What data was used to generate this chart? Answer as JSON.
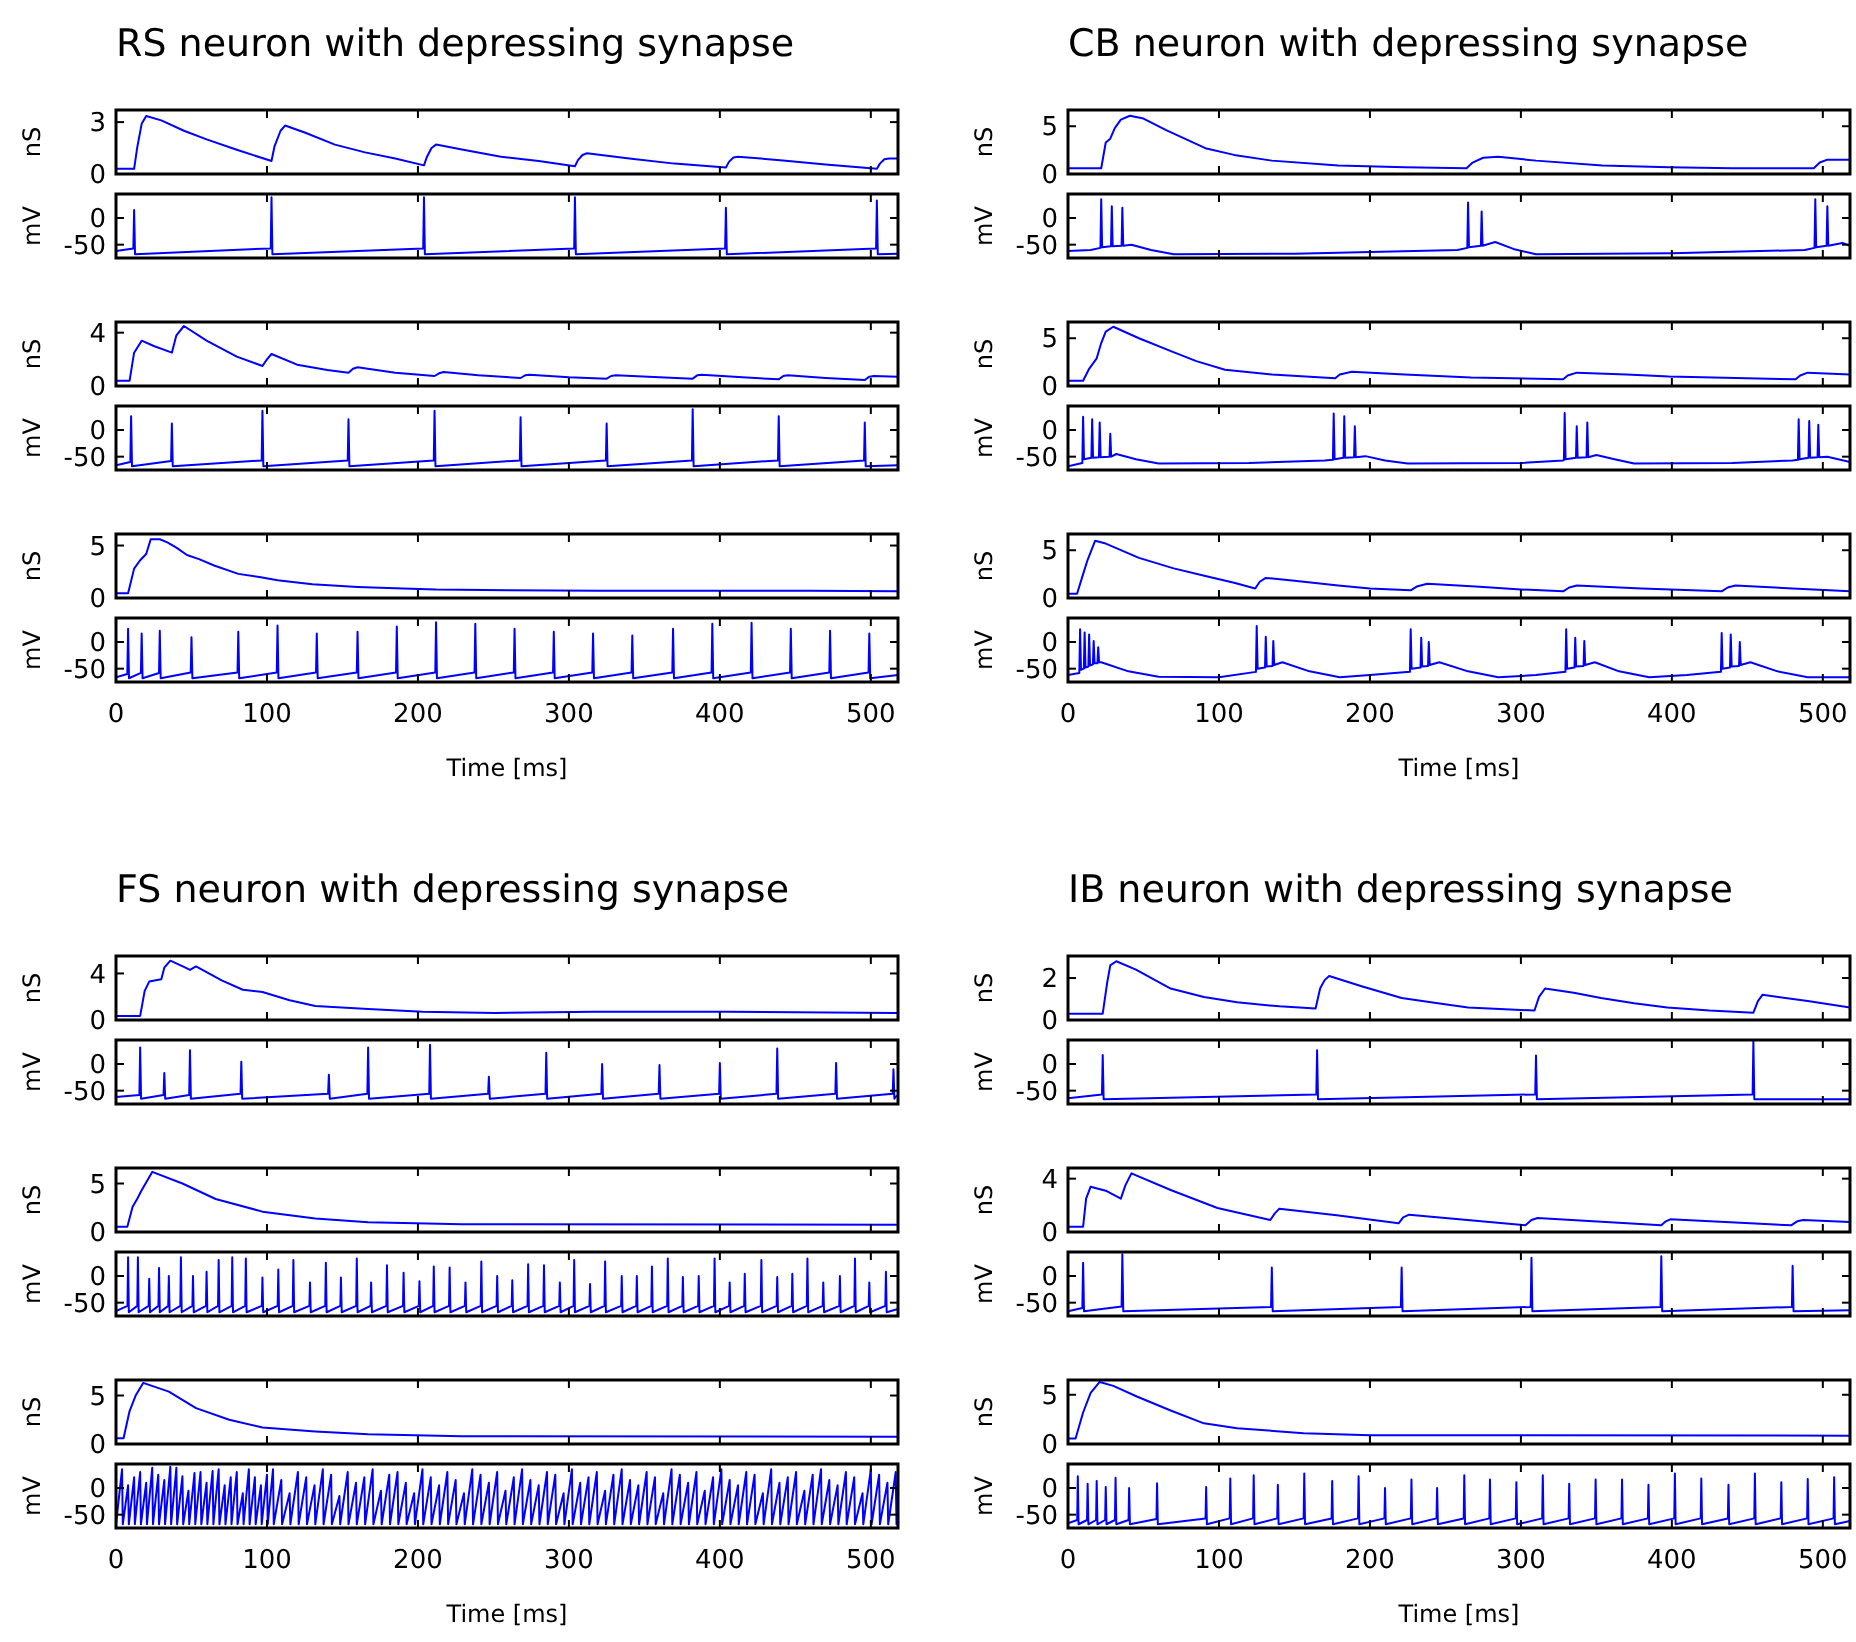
{
  "chart_data": [
    {
      "type": "line",
      "title": "RS neuron with depressing synapse",
      "ylabel": "nS",
      "tick_labels": "y",
      "color": "#0000ff",
      "xlim": [
        0,
        518
      ],
      "xticks": [
        0,
        100,
        200,
        300,
        400,
        500
      ],
      "ylim": [
        0,
        3.7
      ],
      "yticks": [
        0,
        3
      ],
      "x": [
        0,
        12,
        14,
        17,
        20,
        30,
        45,
        60,
        80,
        103,
        105,
        109,
        112,
        125,
        145,
        165,
        185,
        204,
        206,
        209,
        212,
        230,
        255,
        280,
        304,
        306,
        309,
        312,
        340,
        370,
        404,
        406,
        409,
        412,
        440,
        470,
        504,
        506,
        509,
        512,
        518
      ],
      "values": [
        0.3,
        0.3,
        1.5,
        2.9,
        3.35,
        3.1,
        2.5,
        2.0,
        1.4,
        0.75,
        1.6,
        2.5,
        2.8,
        2.4,
        1.7,
        1.25,
        0.9,
        0.5,
        1.0,
        1.5,
        1.7,
        1.4,
        1.0,
        0.75,
        0.45,
        0.8,
        1.1,
        1.2,
        0.9,
        0.6,
        0.37,
        0.7,
        0.95,
        1.0,
        0.8,
        0.55,
        0.3,
        0.6,
        0.85,
        0.9,
        0.9
      ]
    },
    {
      "type": "line",
      "ylabel": "mV",
      "tick_labels": "y",
      "color": "#0000ff",
      "xlim": [
        0,
        518
      ],
      "xticks": [
        0,
        100,
        200,
        300,
        400,
        500
      ],
      "ylim": [
        -75,
        45
      ],
      "yticks": [
        -50,
        0
      ],
      "x": [
        0,
        11.5,
        12,
        12.6,
        102.5,
        103,
        103.6,
        203.5,
        204,
        204.6,
        303.5,
        304,
        304.6,
        403.5,
        404,
        404.6,
        503.5,
        504,
        504.6,
        518
      ],
      "values": [
        -62,
        -57,
        15,
        -68,
        -57,
        39,
        -68,
        -57,
        39,
        -68,
        -57,
        39,
        -68,
        -57,
        19,
        -68,
        -57,
        33,
        -68,
        -67
      ]
    },
    {
      "type": "line",
      "ylabel": "nS",
      "tick_labels": "y",
      "color": "#0000ff",
      "xlim": [
        0,
        518
      ],
      "xticks": [
        0,
        100,
        200,
        300,
        400,
        500
      ],
      "ylim": [
        0,
        4.8
      ],
      "yticks": [
        0,
        4
      ],
      "x": [
        0,
        9,
        12,
        17,
        25,
        37,
        40,
        45,
        60,
        80,
        97,
        100,
        103,
        120,
        140,
        154,
        157,
        160,
        185,
        211,
        214,
        217,
        240,
        268,
        271,
        274,
        300,
        325,
        328,
        331,
        360,
        382,
        385,
        388,
        415,
        439,
        442,
        445,
        470,
        496,
        499,
        502,
        518
      ],
      "values": [
        0.4,
        0.4,
        2.5,
        3.4,
        3.0,
        2.5,
        3.8,
        4.5,
        3.4,
        2.2,
        1.5,
        2.0,
        2.4,
        1.6,
        1.2,
        1.0,
        1.3,
        1.4,
        1.0,
        0.75,
        0.95,
        1.05,
        0.8,
        0.6,
        0.8,
        0.85,
        0.65,
        0.55,
        0.75,
        0.8,
        0.65,
        0.55,
        0.8,
        0.85,
        0.65,
        0.5,
        0.75,
        0.8,
        0.6,
        0.45,
        0.7,
        0.75,
        0.7
      ]
    },
    {
      "type": "line",
      "ylabel": "mV",
      "tick_labels": "y",
      "color": "#0000ff",
      "xlim": [
        0,
        518
      ],
      "xticks": [
        0,
        100,
        200,
        300,
        400,
        500
      ],
      "ylim": [
        -75,
        45
      ],
      "yticks": [
        -50,
        0
      ],
      "x": [
        0,
        9.5,
        10,
        10.6,
        36.5,
        37,
        37.6,
        96.5,
        97,
        97.6,
        153.5,
        154,
        154.6,
        210.5,
        211,
        211.6,
        267.5,
        268,
        268.6,
        324.5,
        325,
        325.6,
        381.5,
        382,
        382.6,
        438.5,
        439,
        439.6,
        495.5,
        496,
        496.6,
        518
      ],
      "values": [
        -66,
        -60,
        26,
        -68,
        -58,
        12,
        -68,
        -57,
        36,
        -68,
        -57,
        20,
        -68,
        -57,
        36,
        -68,
        -57,
        24,
        -68,
        -57,
        12,
        -68,
        -57,
        39,
        -68,
        -57,
        26,
        -68,
        -57,
        14,
        -68,
        -66
      ]
    },
    {
      "type": "line",
      "ylabel": "nS",
      "tick_labels": "y",
      "color": "#0000ff",
      "xlim": [
        0,
        518
      ],
      "xticks": [
        0,
        100,
        200,
        300,
        400,
        500
      ],
      "ylim": [
        0,
        6.1
      ],
      "yticks": [
        0,
        5
      ],
      "x": [
        0,
        8,
        12,
        16,
        20,
        23,
        29,
        34,
        40,
        47,
        55,
        65,
        81,
        95,
        107,
        130,
        160,
        190,
        212,
        260,
        320,
        400,
        460,
        518
      ],
      "values": [
        0.45,
        0.45,
        2.8,
        3.6,
        4.2,
        5.6,
        5.6,
        5.3,
        4.8,
        4.1,
        3.7,
        3.1,
        2.3,
        2.0,
        1.7,
        1.3,
        1.06,
        0.9,
        0.8,
        0.75,
        0.7,
        0.7,
        0.68,
        0.65
      ]
    },
    {
      "type": "line",
      "ylabel": "mV",
      "xlabel": "Time [ms]",
      "color": "#0000ff",
      "xlim": [
        0,
        518
      ],
      "xticks": [
        0,
        100,
        200,
        300,
        400,
        500
      ],
      "ylim": [
        -75,
        45
      ],
      "yticks": [
        -50,
        0
      ],
      "x": [
        0,
        7.5,
        8,
        8.6,
        16.5,
        17,
        17.6,
        28.5,
        29,
        29.6,
        49.5,
        50,
        50.6,
        80.5,
        81,
        81.6,
        106.5,
        107,
        107.6,
        132.5,
        133,
        133.6,
        159.5,
        160,
        160.6,
        185.5,
        186,
        186.6,
        211.5,
        212,
        212.6,
        237.5,
        238,
        238.6,
        263.5,
        264,
        264.6,
        289.5,
        290,
        290.6,
        315.5,
        316,
        316.6,
        341.5,
        342,
        342.6,
        368.5,
        369,
        369.6,
        394.5,
        395,
        395.6,
        420.5,
        421,
        421.6,
        446.5,
        447,
        447.6,
        472.5,
        473,
        473.6,
        498.5,
        499,
        499.6,
        518
      ],
      "values": [
        -66,
        -60,
        25,
        -68,
        -58,
        16,
        -68,
        -58,
        21,
        -68,
        -57,
        9,
        -68,
        -57,
        19,
        -68,
        -57,
        31,
        -68,
        -57,
        16,
        -68,
        -57,
        19,
        -68,
        -57,
        29,
        -68,
        -57,
        37,
        -68,
        -57,
        34,
        -68,
        -57,
        25,
        -68,
        -57,
        19,
        -68,
        -57,
        16,
        -68,
        -57,
        12,
        -68,
        -57,
        25,
        -68,
        -57,
        34,
        -68,
        -57,
        36,
        -68,
        -57,
        25,
        -68,
        -57,
        21,
        -68,
        -57,
        16,
        -68,
        -62
      ]
    },
    {
      "type": "line",
      "title": "CB neuron with depressing synapse",
      "ylabel": "nS",
      "tick_labels": "y",
      "color": "#0000ff",
      "xlim": [
        0,
        518
      ],
      "xticks": [
        0,
        100,
        200,
        300,
        400,
        500
      ],
      "ylim": [
        0,
        6.7
      ],
      "yticks": [
        0,
        5
      ],
      "x": [
        0,
        22,
        25,
        28,
        31,
        35,
        41,
        50,
        65,
        91,
        110,
        135,
        179,
        223,
        264,
        268,
        275,
        285,
        310,
        354,
        398,
        440,
        494,
        498,
        503,
        518
      ],
      "values": [
        0.6,
        0.6,
        3.3,
        3.7,
        4.8,
        5.7,
        6.1,
        5.8,
        4.6,
        2.7,
        2.0,
        1.4,
        0.9,
        0.7,
        0.6,
        1.2,
        1.7,
        1.8,
        1.4,
        0.9,
        0.7,
        0.6,
        0.6,
        1.2,
        1.5,
        1.5
      ]
    },
    {
      "type": "line",
      "ylabel": "mV",
      "tick_labels": "y",
      "color": "#0000ff",
      "xlim": [
        0,
        518
      ],
      "xticks": [
        0,
        100,
        200,
        300,
        400,
        500
      ],
      "ylim": [
        -75,
        45
      ],
      "yticks": [
        -50,
        0
      ],
      "x": [
        0,
        15,
        21.5,
        22,
        22.6,
        28.5,
        29,
        29.6,
        35.5,
        36,
        36.6,
        42,
        55,
        70,
        150,
        258,
        264.5,
        265,
        265.6,
        273.5,
        274,
        274.6,
        283,
        295,
        310,
        400,
        488,
        494.5,
        495,
        495.6,
        502.5,
        503,
        503.6,
        513,
        518
      ],
      "values": [
        -62,
        -60,
        -56,
        35,
        -55,
        -53,
        22,
        -53,
        -52,
        19,
        -52,
        -50,
        -60,
        -68,
        -67,
        -60,
        -56,
        29,
        -55,
        -52,
        12,
        -52,
        -45,
        -58,
        -68,
        -66,
        -60,
        -56,
        35,
        -55,
        -52,
        22,
        -52,
        -47,
        -52
      ]
    },
    {
      "type": "line",
      "ylabel": "nS",
      "tick_labels": "y",
      "color": "#0000ff",
      "xlim": [
        0,
        518
      ],
      "xticks": [
        0,
        100,
        200,
        300,
        400,
        500
      ],
      "ylim": [
        0,
        6.7
      ],
      "yticks": [
        0,
        5
      ],
      "x": [
        0,
        10,
        14,
        19,
        22,
        25,
        30,
        47,
        69,
        85,
        104,
        135,
        177,
        180,
        188,
        223,
        267,
        328,
        331,
        337,
        370,
        398,
        482,
        485,
        490,
        518
      ],
      "values": [
        0.55,
        0.55,
        1.8,
        2.9,
        4.5,
        5.7,
        6.2,
        5.0,
        3.6,
        2.6,
        1.7,
        1.2,
        0.8,
        1.2,
        1.5,
        1.2,
        0.9,
        0.7,
        1.1,
        1.4,
        1.2,
        1.0,
        0.7,
        1.1,
        1.4,
        1.2
      ]
    },
    {
      "type": "line",
      "ylabel": "mV",
      "tick_labels": "y",
      "color": "#0000ff",
      "xlim": [
        0,
        518
      ],
      "xticks": [
        0,
        100,
        200,
        300,
        400,
        500
      ],
      "ylim": [
        -75,
        45
      ],
      "yticks": [
        -50,
        0
      ],
      "x": [
        0,
        9.5,
        10,
        10.6,
        15.5,
        16,
        16.6,
        20.5,
        21,
        21.6,
        27.5,
        28,
        28.6,
        32,
        45,
        60,
        120,
        170,
        175.5,
        176,
        176.6,
        182.5,
        183,
        183.6,
        189.5,
        190,
        190.6,
        197,
        210,
        225,
        300,
        328,
        328.5,
        329,
        329.6,
        336.5,
        337,
        337.6,
        343.5,
        344,
        344.6,
        350,
        362,
        375,
        440,
        480,
        483.5,
        484,
        484.6,
        490.5,
        491,
        491.6,
        496.5,
        497,
        497.6,
        503,
        518
      ],
      "values": [
        -68,
        -62,
        25,
        -55,
        -52,
        20,
        -52,
        -51,
        14,
        -51,
        -50,
        -7,
        -50,
        -45,
        -55,
        -63,
        -62,
        -57,
        -56,
        31,
        -55,
        -52,
        26,
        -52,
        -51,
        7,
        -51,
        -49,
        -57,
        -63,
        -62,
        -57,
        -56,
        32,
        -55,
        -52,
        7,
        -52,
        -51,
        14,
        -51,
        -47,
        -55,
        -63,
        -62,
        -57,
        -56,
        20,
        -55,
        -52,
        17,
        -52,
        -51,
        10,
        -51,
        -50,
        -60
      ]
    },
    {
      "type": "line",
      "ylabel": "nS",
      "tick_labels": "y",
      "color": "#0000ff",
      "xlim": [
        0,
        518
      ],
      "xticks": [
        0,
        100,
        200,
        300,
        400,
        500
      ],
      "ylim": [
        0,
        6.7
      ],
      "yticks": [
        0,
        5
      ],
      "x": [
        0,
        6,
        10,
        13,
        18,
        25,
        47,
        70,
        91,
        110,
        124,
        127,
        131,
        150,
        179,
        200,
        227,
        231,
        238,
        270,
        300,
        328,
        332,
        337,
        380,
        433,
        437,
        442,
        480,
        518
      ],
      "values": [
        0.45,
        0.45,
        2.5,
        4.0,
        6.0,
        5.7,
        4.2,
        3.1,
        2.3,
        1.6,
        1.0,
        1.7,
        2.1,
        1.8,
        1.3,
        1.0,
        0.8,
        1.2,
        1.5,
        1.2,
        0.9,
        0.7,
        1.1,
        1.3,
        1.0,
        0.7,
        1.1,
        1.3,
        1.0,
        0.7
      ]
    },
    {
      "type": "line",
      "ylabel": "mV",
      "xlabel": "Time [ms]",
      "color": "#0000ff",
      "xlim": [
        0,
        518
      ],
      "xticks": [
        0,
        100,
        200,
        300,
        400,
        500
      ],
      "ylim": [
        -75,
        45
      ],
      "yticks": [
        -50,
        0
      ],
      "x": [
        0,
        7.5,
        8,
        8.6,
        10.5,
        11,
        11.6,
        13.5,
        14,
        14.6,
        16.5,
        17,
        17.6,
        19.5,
        20,
        20.6,
        22,
        40,
        60,
        100,
        124.5,
        125,
        125.6,
        130.5,
        131,
        131.6,
        135.5,
        136,
        136.6,
        142,
        160,
        180,
        200,
        226.5,
        227,
        227.6,
        233.5,
        234,
        234.6,
        238.5,
        239,
        239.6,
        246,
        265,
        285,
        310,
        329.5,
        330,
        330.6,
        335.5,
        336,
        336.6,
        341.5,
        342,
        342.6,
        349,
        365,
        385,
        410,
        432.5,
        433,
        433.6,
        438.5,
        439,
        439.6,
        444.5,
        445,
        445.6,
        452,
        470,
        490,
        518
      ],
      "values": [
        -62,
        -58,
        24,
        -52,
        -50,
        18,
        -48,
        -46,
        14,
        -44,
        -42,
        2,
        -40,
        -40,
        -10,
        -38,
        -38,
        -55,
        -65,
        -66,
        -56,
        30,
        -50,
        -48,
        10,
        -46,
        -45,
        2,
        -43,
        -38,
        -55,
        -66,
        -62,
        -56,
        24,
        -50,
        -48,
        8,
        -46,
        -45,
        0,
        -43,
        -38,
        -55,
        -66,
        -62,
        -56,
        24,
        -50,
        -48,
        8,
        -46,
        -45,
        2,
        -43,
        -38,
        -55,
        -66,
        -62,
        -56,
        17,
        -50,
        -48,
        14,
        -46,
        -45,
        0,
        -43,
        -38,
        -55,
        -66,
        -66
      ]
    },
    {
      "type": "line",
      "title": "FS neuron with depressing synapse",
      "ylabel": "nS",
      "tick_labels": "y",
      "color": "#0000ff",
      "xlim": [
        0,
        518
      ],
      "xticks": [
        0,
        100,
        200,
        300,
        400,
        500
      ],
      "ylim": [
        0,
        5.5
      ],
      "yticks": [
        0,
        4
      ],
      "x": [
        0,
        16,
        19,
        22,
        30,
        32,
        36,
        46,
        49,
        53,
        70,
        84,
        97,
        115,
        132,
        167,
        203,
        251,
        317,
        405,
        517
      ],
      "values": [
        0.35,
        0.35,
        2.5,
        3.3,
        3.5,
        4.5,
        5.1,
        4.5,
        4.3,
        4.6,
        3.4,
        2.6,
        2.4,
        1.7,
        1.2,
        0.95,
        0.7,
        0.6,
        0.7,
        0.7,
        0.6
      ]
    },
    {
      "type": "line",
      "ylabel": "mV",
      "tick_labels": "y",
      "color": "#0000ff",
      "xlim": [
        0,
        518
      ],
      "xticks": [
        0,
        100,
        200,
        300,
        400,
        500
      ],
      "ylim": [
        -75,
        45
      ],
      "yticks": [
        -50,
        0
      ],
      "x": [
        0,
        15.5,
        16,
        16.6,
        31.5,
        32,
        32.6,
        48.5,
        49,
        49.6,
        82.5,
        83,
        83.6,
        140.5,
        141,
        141.6,
        166.5,
        167,
        167.6,
        207.5,
        208,
        208.6,
        246.5,
        247,
        247.6,
        284.5,
        285,
        285.6,
        321.5,
        322,
        322.6,
        359.5,
        360,
        360.6,
        399.5,
        400,
        400.6,
        437.5,
        438,
        438.6,
        476.5,
        477,
        477.6,
        514.5,
        515,
        515.6,
        517
      ],
      "values": [
        -62,
        -58,
        31,
        -65,
        -58,
        -17,
        -65,
        -58,
        26,
        -65,
        -56,
        4,
        -65,
        -56,
        -20,
        -65,
        -56,
        31,
        -65,
        -56,
        36,
        -65,
        -56,
        -24,
        -65,
        -56,
        21,
        -65,
        -56,
        0,
        -65,
        -56,
        -2,
        -65,
        -56,
        2,
        -65,
        -56,
        29,
        -65,
        -56,
        2,
        -65,
        -56,
        -10,
        -65,
        -60
      ]
    },
    {
      "type": "line",
      "ylabel": "nS",
      "tick_labels": "y",
      "color": "#0000ff",
      "xlim": [
        0,
        518
      ],
      "xticks": [
        0,
        100,
        200,
        300,
        400,
        500
      ],
      "ylim": [
        0,
        6.6
      ],
      "yticks": [
        0,
        5
      ],
      "x": [
        0,
        7.5,
        11,
        14,
        17,
        24,
        44,
        66,
        97,
        132,
        167,
        229,
        517
      ],
      "values": [
        0.55,
        0.55,
        2.6,
        3.4,
        4.3,
        6.2,
        5.0,
        3.4,
        2.1,
        1.4,
        1.0,
        0.8,
        0.75
      ]
    },
    {
      "type": "line",
      "ylabel": "mV",
      "tick_labels": "y",
      "color": "#0000ff",
      "xlim": [
        0,
        518
      ],
      "xticks": [
        0,
        100,
        200,
        300,
        400,
        500
      ],
      "ylim": [
        -75,
        45
      ],
      "yticks": [
        -50,
        0
      ],
      "x": [
        0,
        7.6,
        8,
        8.5,
        14.1,
        14.5,
        15,
        21.6,
        22,
        22.5,
        28.1,
        28.5,
        29,
        34.6,
        35,
        35.5,
        42.6,
        43,
        43.5,
        50.6,
        51,
        51.5,
        59.6,
        60,
        60.5,
        67.6,
        68,
        68.5,
        76.6,
        77,
        77.5,
        85.6,
        86,
        86.5,
        96.6,
        97,
        97.5,
        107.1,
        107.5,
        108,
        117.1,
        117.5,
        118,
        128.1,
        128.5,
        129,
        138.6,
        139,
        139.5,
        148.6,
        149,
        149.5,
        159.1,
        159.5,
        160,
        168.6,
        169,
        169.5,
        179.1,
        179.5,
        180,
        190.1,
        190.5,
        191,
        200.6,
        201,
        201.5,
        210.1,
        210.5,
        211,
        220.6,
        221,
        221.5,
        231.1,
        231.5,
        232,
        241.6,
        242,
        242.5,
        252.1,
        252.5,
        253,
        262.1,
        262.5,
        263,
        272.6,
        273,
        273.5,
        283.1,
        283.5,
        284,
        293.6,
        294,
        294.5,
        303.1,
        303.5,
        304,
        313.6,
        314,
        314.5,
        323.6,
        324,
        324.5,
        334.6,
        335,
        335.5,
        344.6,
        345,
        345.5,
        354.6,
        355,
        355.5,
        365.1,
        365.5,
        366,
        375.1,
        375.5,
        376,
        385.6,
        386,
        386.5,
        396.1,
        396.5,
        397,
        406.1,
        406.5,
        407,
        416.1,
        416.5,
        417,
        427.1,
        427.5,
        428,
        437.6,
        438,
        438.5,
        447.6,
        448,
        448.5,
        457.6,
        458,
        458.5,
        468.1,
        468.5,
        469,
        479.1,
        479.5,
        480,
        489.1,
        489.5,
        490,
        498.6,
        499,
        499.5,
        509.6,
        510,
        510.5,
        518
      ],
      "values": [
        -66,
        -56,
        35,
        -68,
        -56,
        35,
        -68,
        -56,
        -5,
        -68,
        -56,
        15,
        -68,
        -56,
        0,
        -68,
        -56,
        35,
        -68,
        -56,
        0,
        -68,
        -56,
        8,
        -68,
        -56,
        30,
        -68,
        -56,
        35,
        -68,
        -56,
        33,
        -68,
        -56,
        -3,
        -68,
        -56,
        12,
        -68,
        -56,
        30,
        -68,
        -56,
        -12,
        -68,
        -56,
        25,
        -68,
        -56,
        -3,
        -68,
        -56,
        33,
        -68,
        -56,
        -12,
        -68,
        -56,
        20,
        -68,
        -56,
        6,
        -68,
        -56,
        -10,
        -68,
        -56,
        18,
        -68,
        -56,
        16,
        -68,
        -56,
        -12,
        -68,
        -56,
        27,
        -68,
        -56,
        0,
        -68,
        -56,
        -8,
        -68,
        -56,
        22,
        -68,
        -56,
        20,
        -68,
        -56,
        -12,
        -68,
        -56,
        30,
        -68,
        -56,
        -15,
        -68,
        -56,
        27,
        -68,
        -56,
        0,
        -68,
        -56,
        0,
        -68,
        -56,
        18,
        -68,
        -56,
        33,
        -68,
        -56,
        -2,
        -68,
        -56,
        0,
        -68,
        -56,
        33,
        -68,
        -56,
        -12,
        -68,
        -56,
        4,
        -68,
        -56,
        30,
        -68,
        -56,
        -2,
        -68,
        -56,
        4,
        -68,
        -56,
        33,
        -68,
        -56,
        -12,
        -68,
        -56,
        0,
        -68,
        -56,
        33,
        -68,
        -56,
        -12,
        -68,
        -56,
        8,
        -68,
        -62
      ]
    },
    {
      "type": "line",
      "ylabel": "nS",
      "tick_labels": "y",
      "color": "#0000ff",
      "xlim": [
        0,
        518
      ],
      "xticks": [
        0,
        100,
        200,
        300,
        400,
        500
      ],
      "ylim": [
        0,
        6.6
      ],
      "yticks": [
        0,
        5
      ],
      "x": [
        0,
        5,
        9,
        13,
        18,
        35,
        53,
        75,
        97,
        132,
        167,
        229,
        517
      ],
      "values": [
        0.6,
        0.6,
        3.4,
        5.0,
        6.3,
        5.4,
        3.7,
        2.5,
        1.7,
        1.3,
        1.0,
        0.8,
        0.75
      ]
    },
    {
      "type": "line",
      "ylabel": "mV",
      "xlabel": "Time [ms]",
      "color": "#0000ff",
      "xlim": [
        0,
        518
      ],
      "xticks": [
        0,
        100,
        200,
        300,
        400,
        500
      ],
      "ylim": [
        -75,
        45
      ],
      "yticks": [
        -50,
        0
      ],
      "x": [
        0,
        4,
        4.5,
        8,
        8.5,
        12,
        12.5,
        16,
        16.5,
        20,
        20.5,
        24,
        24.5,
        28,
        28.5,
        32,
        32.5,
        36,
        36.5,
        40,
        40.5,
        44,
        44.5,
        48,
        48.5,
        52,
        52.5,
        56,
        56.5,
        60,
        60.5,
        64,
        64.5,
        68,
        68.5,
        72,
        72.5,
        76,
        76.5,
        80,
        80.5,
        84,
        84.5,
        88,
        88.5,
        92,
        92.5,
        96,
        96.5,
        100,
        100.5,
        104,
        104.5,
        109.5,
        110,
        115,
        115.5,
        120.5,
        121,
        126,
        126.5,
        131.5,
        132,
        137,
        137.5,
        142.5,
        143,
        148,
        148.5,
        153.5,
        154,
        159,
        159.5,
        164.5,
        165,
        170,
        170.5,
        175.5,
        176,
        181,
        181.5,
        186.5,
        187,
        192,
        192.5,
        197.5,
        198,
        203,
        203.5,
        208.5,
        209,
        214,
        214.5,
        219.5,
        220,
        225,
        225.5,
        230.5,
        231,
        236,
        236.5,
        241.5,
        242,
        247,
        247.5,
        252.5,
        253,
        258,
        258.5,
        263.5,
        264,
        269,
        269.5,
        274.5,
        275,
        280,
        280.5,
        285.5,
        286,
        291,
        291.5,
        296.5,
        297,
        302,
        302.5,
        307.5,
        308,
        313,
        313.5,
        318.5,
        319,
        324,
        324.5,
        329.5,
        330,
        335,
        335.5,
        340.5,
        341,
        346,
        346.5,
        351.5,
        352,
        357,
        357.5,
        362.5,
        363,
        368,
        368.5,
        373.5,
        374,
        379,
        379.5,
        384.5,
        385,
        390,
        390.5,
        395.5,
        396,
        401,
        401.5,
        406.5,
        407,
        412,
        412.5,
        417.5,
        418,
        423,
        423.5,
        428.5,
        429,
        434,
        434.5,
        439.5,
        440,
        445,
        445.5,
        450.5,
        451,
        456,
        456.5,
        461.5,
        462,
        467,
        467.5,
        472.5,
        473,
        478,
        478.5,
        483.5,
        484,
        489,
        489.5,
        494.5,
        495,
        500,
        500.5,
        505.5,
        506,
        511,
        511.5,
        516.5,
        517
      ],
      "values": [
        -68,
        35,
        -68,
        5,
        -68,
        20,
        -68,
        30,
        -68,
        10,
        -68,
        38,
        -68,
        25,
        -68,
        15,
        -68,
        40,
        -68,
        38,
        -68,
        22,
        -68,
        -5,
        -68,
        28,
        -68,
        30,
        -68,
        10,
        -68,
        32,
        -68,
        35,
        -68,
        5,
        -68,
        20,
        -68,
        30,
        -68,
        -10,
        -68,
        35,
        -68,
        20,
        -68,
        5,
        -68,
        25,
        -68,
        35,
        -68,
        15,
        -68,
        -10,
        -68,
        30,
        -68,
        20,
        -68,
        5,
        -68,
        35,
        -68,
        25,
        -68,
        -15,
        -68,
        30,
        -68,
        10,
        -68,
        20,
        -68,
        35,
        -68,
        -5,
        -68,
        25,
        -68,
        30,
        -68,
        10,
        -68,
        -10,
        -68,
        35,
        -68,
        20,
        -68,
        5,
        -68,
        30,
        -68,
        15,
        -68,
        -10,
        -68,
        35,
        -68,
        25,
        -68,
        10,
        -68,
        30,
        -68,
        -5,
        -68,
        20,
        -68,
        35,
        -68,
        15,
        -68,
        5,
        -68,
        30,
        -68,
        25,
        -68,
        -10,
        -68,
        35,
        -68,
        10,
        -68,
        20,
        -68,
        30,
        -68,
        -5,
        -68,
        25,
        -68,
        35,
        -68,
        15,
        -68,
        5,
        -68,
        30,
        -68,
        20,
        -68,
        -10,
        -68,
        35,
        -68,
        25,
        -68,
        10,
        -68,
        30,
        -68,
        -5,
        -68,
        20,
        -68,
        35,
        -68,
        15,
        -68,
        5,
        -68,
        30,
        -68,
        25,
        -68,
        -10,
        -68,
        35,
        -68,
        10,
        -68,
        20,
        -68,
        30,
        -68,
        -5,
        -68,
        25,
        -68,
        35,
        -68,
        15,
        -68,
        5,
        -68,
        30,
        -68,
        20,
        -68,
        -10,
        -68,
        35,
        -68,
        25,
        -68,
        10,
        -68,
        30,
        -68
      ]
    },
    {
      "type": "line",
      "title": "IB neuron with depressing synapse",
      "ylabel": "nS",
      "tick_labels": "y",
      "color": "#0000ff",
      "xlim": [
        0,
        518
      ],
      "xticks": [
        0,
        100,
        200,
        300,
        400,
        500
      ],
      "ylim": [
        0,
        3.05
      ],
      "yticks": [
        0,
        2
      ],
      "x": [
        0,
        23,
        26,
        28,
        32,
        45,
        68,
        90,
        112,
        140,
        164,
        167,
        170,
        173,
        195,
        221,
        245,
        265,
        309,
        312,
        316,
        335,
        353,
        375,
        397,
        425,
        454,
        457,
        460,
        490,
        518
      ],
      "values": [
        0.3,
        0.3,
        1.8,
        2.6,
        2.8,
        2.4,
        1.5,
        1.1,
        0.85,
        0.65,
        0.55,
        1.5,
        1.9,
        2.1,
        1.6,
        1.05,
        0.8,
        0.6,
        0.45,
        1.1,
        1.5,
        1.3,
        1.05,
        0.8,
        0.6,
        0.45,
        0.35,
        0.9,
        1.2,
        0.9,
        0.6
      ]
    },
    {
      "type": "line",
      "ylabel": "mV",
      "tick_labels": "y",
      "color": "#0000ff",
      "xlim": [
        0,
        518
      ],
      "xticks": [
        0,
        100,
        200,
        300,
        400,
        500
      ],
      "ylim": [
        -75,
        45
      ],
      "yticks": [
        -50,
        0
      ],
      "x": [
        0,
        22.5,
        23,
        23.6,
        164.5,
        165,
        165.6,
        309.5,
        310,
        310.6,
        453.5,
        454,
        454.6,
        518
      ],
      "values": [
        -64,
        -57,
        17,
        -66,
        -57,
        26,
        -66,
        -57,
        16,
        -66,
        -57,
        42,
        -66,
        -66
      ]
    },
    {
      "type": "line",
      "ylabel": "nS",
      "tick_labels": "y",
      "color": "#0000ff",
      "xlim": [
        0,
        518
      ],
      "xticks": [
        0,
        100,
        200,
        300,
        400,
        500
      ],
      "ylim": [
        0,
        4.8
      ],
      "yticks": [
        0,
        4
      ],
      "x": [
        0,
        10,
        12,
        15,
        25,
        35,
        38,
        42,
        68,
        99,
        134,
        137,
        140,
        178,
        219,
        222,
        226,
        303,
        307,
        311,
        393,
        396,
        399,
        479,
        483,
        487,
        518
      ],
      "values": [
        0.4,
        0.4,
        2.5,
        3.4,
        3.1,
        2.5,
        3.5,
        4.4,
        3.15,
        1.8,
        0.9,
        1.4,
        1.75,
        1.25,
        0.65,
        1.1,
        1.3,
        0.5,
        0.9,
        1.05,
        0.5,
        0.8,
        0.95,
        0.5,
        0.8,
        0.9,
        0.75
      ]
    },
    {
      "type": "line",
      "ylabel": "mV",
      "tick_labels": "y",
      "color": "#0000ff",
      "xlim": [
        0,
        518
      ],
      "xticks": [
        0,
        100,
        200,
        300,
        400,
        500
      ],
      "ylim": [
        -75,
        45
      ],
      "yticks": [
        -50,
        0
      ],
      "x": [
        0,
        9.5,
        10,
        10.6,
        35.5,
        36,
        36.6,
        134.5,
        135,
        135.6,
        220.5,
        221,
        221.6,
        306.5,
        307,
        307.6,
        392.5,
        393,
        393.6,
        479.5,
        480,
        480.6,
        518
      ],
      "values": [
        -66,
        -60,
        25,
        -66,
        -57,
        41,
        -66,
        -58,
        16,
        -66,
        -58,
        16,
        -66,
        -58,
        34,
        -66,
        -58,
        37,
        -66,
        -58,
        19,
        -66,
        -64
      ]
    },
    {
      "type": "line",
      "ylabel": "nS",
      "tick_labels": "y",
      "color": "#0000ff",
      "xlim": [
        0,
        518
      ],
      "xticks": [
        0,
        100,
        200,
        300,
        400,
        500
      ],
      "ylim": [
        0,
        6.5
      ],
      "yticks": [
        0,
        5
      ],
      "x": [
        0,
        5,
        10,
        15,
        21,
        30,
        46,
        68,
        90,
        112,
        156,
        200,
        518
      ],
      "values": [
        0.55,
        0.55,
        3.2,
        5.2,
        6.3,
        5.9,
        4.8,
        3.4,
        2.1,
        1.6,
        1.1,
        0.9,
        0.85
      ]
    },
    {
      "type": "line",
      "ylabel": "mV",
      "xlabel": "Time [ms]",
      "color": "#0000ff",
      "xlim": [
        0,
        518
      ],
      "xticks": [
        0,
        100,
        200,
        300,
        400,
        500
      ],
      "ylim": [
        -75,
        45
      ],
      "yticks": [
        -50,
        0
      ],
      "x": [
        0,
        6.1,
        6.5,
        7,
        12.6,
        13,
        13.5,
        18.6,
        19,
        19.5,
        24.6,
        25,
        25.5,
        31.1,
        31.5,
        32,
        40.1,
        40.5,
        41,
        58.6,
        59,
        59.5,
        91.1,
        91.5,
        92,
        107.1,
        107.5,
        108,
        122.6,
        123,
        123.5,
        138.6,
        139,
        139.5,
        156.1,
        156.5,
        157,
        174.6,
        175,
        175.5,
        192.1,
        192.5,
        193,
        209.6,
        210,
        210.5,
        227.1,
        227.5,
        228,
        244.1,
        244.5,
        245,
        262.1,
        262.5,
        263,
        279.1,
        279.5,
        280,
        296.6,
        297,
        297.5,
        314.1,
        314.5,
        315,
        331.6,
        332,
        332.5,
        349.1,
        349.5,
        350,
        366.6,
        367,
        367.5,
        384.1,
        384.5,
        385,
        401.6,
        402,
        402.5,
        419.1,
        419.5,
        420,
        437.1,
        437.5,
        438,
        454.6,
        455,
        455.5,
        472.1,
        472.5,
        473,
        489.6,
        490,
        490.5,
        507.1,
        507.5,
        508,
        518
      ],
      "values": [
        -66,
        -60,
        22,
        -68,
        -60,
        8,
        -68,
        -60,
        13,
        -68,
        -60,
        2,
        -68,
        -60,
        19,
        -68,
        -60,
        0,
        -68,
        -58,
        9,
        -68,
        -57,
        2,
        -68,
        -57,
        18,
        -68,
        -57,
        24,
        -68,
        -57,
        6,
        -68,
        -57,
        27,
        -68,
        -57,
        13,
        -68,
        -57,
        22,
        -68,
        -57,
        0,
        -68,
        -57,
        16,
        -68,
        -57,
        0,
        -68,
        -57,
        24,
        -68,
        -57,
        16,
        -68,
        -57,
        11,
        -68,
        -57,
        24,
        -68,
        -57,
        8,
        -68,
        -57,
        16,
        -68,
        -57,
        16,
        -68,
        -57,
        6,
        -68,
        -57,
        27,
        -68,
        -57,
        18,
        -68,
        -57,
        6,
        -68,
        -57,
        27,
        -68,
        -57,
        11,
        -68,
        -57,
        17,
        -68,
        -57,
        20,
        -68,
        -62
      ]
    }
  ]
}
